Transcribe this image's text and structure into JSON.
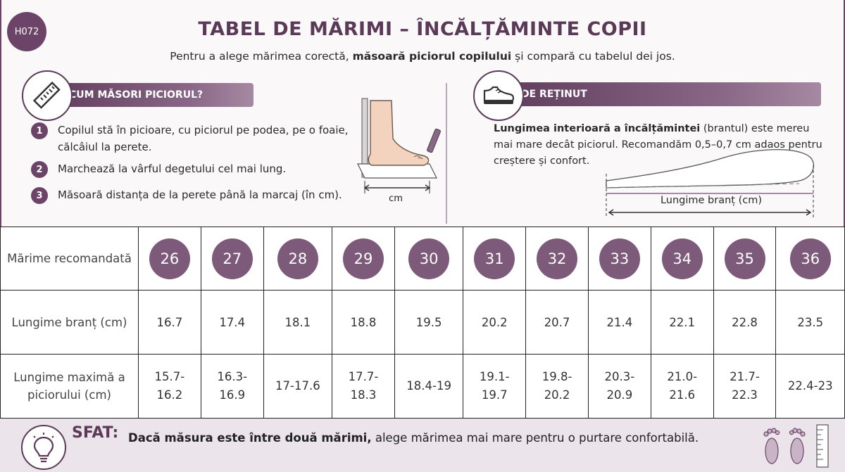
{
  "code": "H072",
  "title": "TABEL DE MĂRIMI – ÎNCĂLȚĂMINTE COPII",
  "subtitle": {
    "pre": "Pentru a alege mărimea corectă, ",
    "bold": "măsoară piciorul copilului",
    "post": " și compară cu tabelul dei jos."
  },
  "how_to": {
    "heading": "CUM MĂSORI PICIORUL?",
    "icon": "ruler-icon",
    "steps": [
      {
        "num": "1",
        "text": "Copilul stă în picioare, cu piciorul pe podea, pe o foaie, călcâiul la perete."
      },
      {
        "num": "2",
        "text": "Marchează la vârful degetului cel mai lung."
      },
      {
        "num": "3",
        "text": "Măsoară distanța de la perete până la marcaj (în cm)."
      }
    ],
    "illus_label": "cm"
  },
  "remember": {
    "heading": "DE REȚINUT",
    "icon": "shoe-icon",
    "bold": "Lungimea interioară a încălțămintei",
    "text": " (brantul) este mereu mai mare decât piciorul. Recomandăm 0,5–0,7 cm adaos pentru creștere și confort.",
    "insole_label": "Lungime branț (cm)"
  },
  "table": {
    "row_labels": {
      "size": "Mărime recomandată",
      "insole": "Lungime branț (cm)",
      "foot": "Lungime maximă a piciorului (cm)"
    },
    "sizes": [
      "26",
      "27",
      "28",
      "29",
      "30",
      "31",
      "32",
      "33",
      "34",
      "35",
      "36"
    ],
    "insole_lengths": [
      "16.7",
      "17.4",
      "18.1",
      "18.8",
      "19.5",
      "20.2",
      "20.7",
      "21.4",
      "22.1",
      "22.8",
      "23.5"
    ],
    "foot_lengths": [
      "15.7-16.2",
      "16.3-16.9",
      "17-17.6",
      "17.7-18.3",
      "18.4-19",
      "19.1-19.7",
      "19.8-20.2",
      "20.3-20.9",
      "21.0-21.6",
      "21.7-22.3",
      "22.4-23"
    ]
  },
  "tip": {
    "label": "SFAT:",
    "bold": "Dacă măsura este între două mărimi,",
    "text": " alege mărimea mai mare pentru o purtare confortabilă.",
    "icon": "lightbulb-icon"
  },
  "colors": {
    "accent": "#6b4468",
    "circle": "#7d5a7a",
    "tip_background": "#ebe4ea"
  }
}
